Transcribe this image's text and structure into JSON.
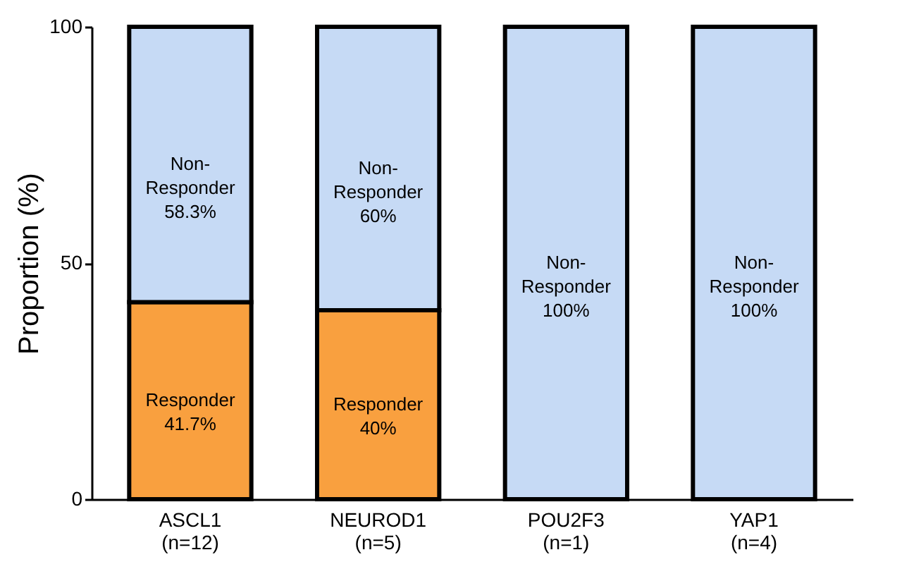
{
  "chart_data": {
    "type": "bar",
    "stacked": true,
    "ylabel": "Proportion (%)",
    "categories": [
      "ASCL1\n(n=12)",
      "NEUROD1\n(n=5)",
      "POU2F3\n(n=1)",
      "YAP1\n(n=4)"
    ],
    "series": [
      {
        "name": "Responder",
        "color": "#f9a03f",
        "values": [
          41.7,
          40,
          0,
          0
        ],
        "value_labels": [
          "41.7%",
          "40%",
          null,
          null
        ]
      },
      {
        "name": "Non-Responder",
        "color": "#c6daf5",
        "values": [
          58.3,
          60,
          100,
          100
        ],
        "value_labels": [
          "58.3%",
          "60%",
          "100%",
          "100%"
        ]
      }
    ],
    "ylim": [
      0,
      100
    ],
    "yticks": [
      0,
      50,
      100
    ],
    "grid": false,
    "legend": false
  }
}
